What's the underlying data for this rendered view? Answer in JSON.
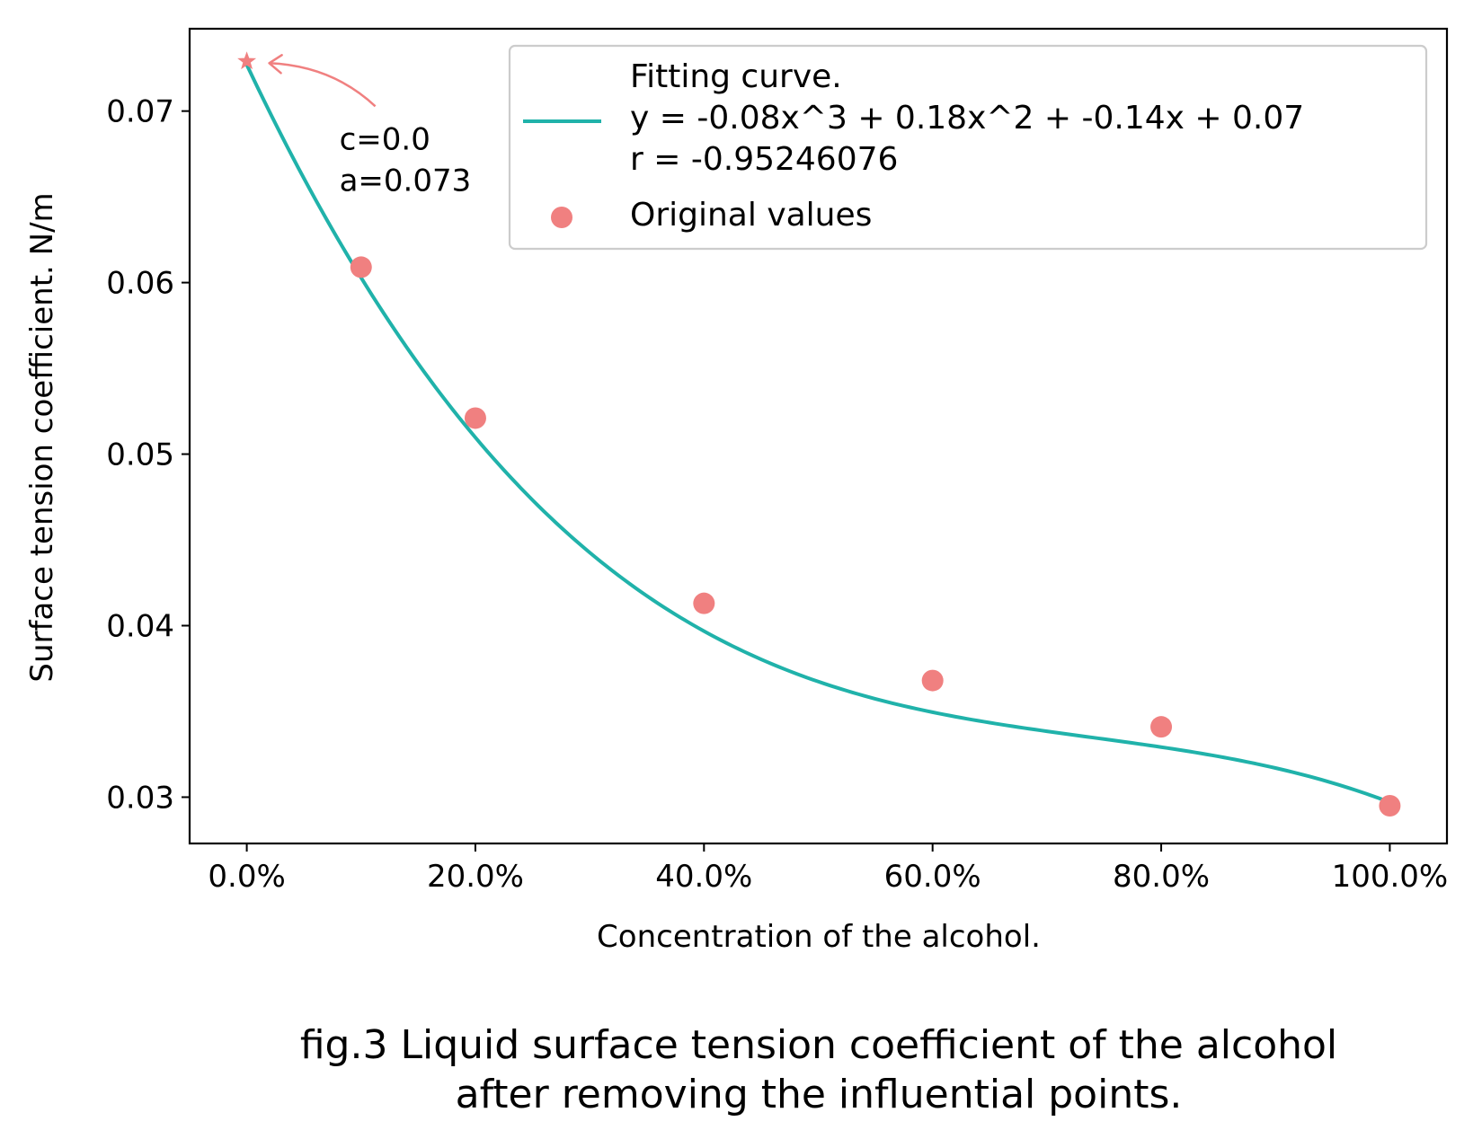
{
  "chart_data": {
    "type": "scatter",
    "xlabel": "Concentration of the alcohol.",
    "ylabel": "Surface tension coefficient. N/m",
    "xlim": [
      -0.05,
      1.05
    ],
    "ylim": [
      0.0273,
      0.0748
    ],
    "x_ticks": [
      {
        "value": 0.0,
        "label": "0.0%"
      },
      {
        "value": 0.2,
        "label": "20.0%"
      },
      {
        "value": 0.4,
        "label": "40.0%"
      },
      {
        "value": 0.6,
        "label": "60.0%"
      },
      {
        "value": 0.8,
        "label": "80.0%"
      },
      {
        "value": 1.0,
        "label": "100.0%"
      }
    ],
    "y_ticks": [
      {
        "value": 0.03,
        "label": "0.03"
      },
      {
        "value": 0.04,
        "label": "0.04"
      },
      {
        "value": 0.05,
        "label": "0.05"
      },
      {
        "value": 0.06,
        "label": "0.06"
      },
      {
        "value": 0.07,
        "label": "0.07"
      }
    ],
    "grid": false,
    "legend_position": "top-right",
    "series": [
      {
        "name": "Fitting curve.",
        "label_lines": [
          "Fitting curve.",
          "y = -0.08x^3 + 0.18x^2 + -0.14x + 0.07",
          "r = -0.95246076"
        ],
        "kind": "line",
        "color": "#20b2aa",
        "coefficients": [
          -0.0807,
          0.1789,
          -0.1412,
          0.0727
        ],
        "x_range": [
          0.0,
          1.0
        ]
      },
      {
        "name": "Original values",
        "kind": "scatter",
        "color": "#f08080",
        "points": [
          {
            "x": 0.1,
            "y": 0.0609
          },
          {
            "x": 0.2,
            "y": 0.0521
          },
          {
            "x": 0.4,
            "y": 0.0413
          },
          {
            "x": 0.6,
            "y": 0.0368
          },
          {
            "x": 0.8,
            "y": 0.0341
          },
          {
            "x": 1.0,
            "y": 0.0295
          }
        ]
      }
    ],
    "annotation": {
      "point": {
        "x": 0.0,
        "y": 0.0729
      },
      "marker": "star",
      "color": "#f08080",
      "lines": [
        "c=0.0",
        "a=0.073"
      ]
    }
  },
  "caption": {
    "line1": "fig.3 Liquid surface tension coefficient of the alcohol",
    "line2": "after removing the influential points."
  }
}
